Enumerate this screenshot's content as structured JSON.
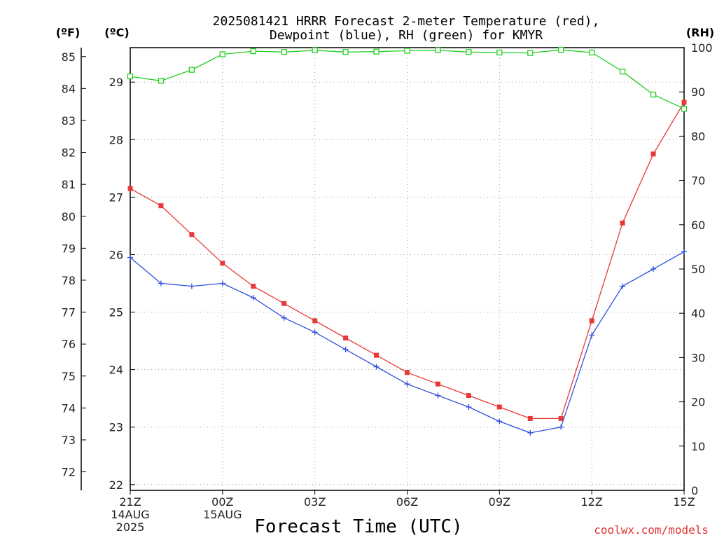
{
  "chart_data": {
    "type": "line",
    "title_line1": "2025081421 HRRR Forecast 2-meter Temperature (red),",
    "title_line2": "Dewpoint (blue), RH (green) for KMYR",
    "xlabel": "Forecast Time (UTC)",
    "unit_f": "(ºF)",
    "unit_c": "(ºC)",
    "unit_rh": "(RH)",
    "credit": "coolwx.com/models",
    "x_hours": [
      0,
      1,
      2,
      3,
      4,
      5,
      6,
      7,
      8,
      9,
      10,
      11,
      12,
      13,
      14,
      15,
      16,
      17,
      18
    ],
    "x_ticks": [
      {
        "hour": 0,
        "lines": [
          "21Z",
          "14AUG",
          "2025"
        ]
      },
      {
        "hour": 3,
        "lines": [
          "00Z",
          "15AUG"
        ]
      },
      {
        "hour": 6,
        "lines": [
          "03Z"
        ]
      },
      {
        "hour": 9,
        "lines": [
          "06Z"
        ]
      },
      {
        "hour": 12,
        "lines": [
          "09Z"
        ]
      },
      {
        "hour": 15,
        "lines": [
          "12Z"
        ]
      },
      {
        "hour": 18,
        "lines": [
          "15Z"
        ]
      }
    ],
    "c_range": [
      21.9,
      29.6
    ],
    "c_ticks": [
      "22",
      "23",
      "24",
      "25",
      "26",
      "27",
      "28",
      "29"
    ],
    "f_ticks": [
      "72",
      "73",
      "74",
      "75",
      "76",
      "77",
      "78",
      "79",
      "80",
      "81",
      "82",
      "83",
      "84",
      "85"
    ],
    "rh_range": [
      0,
      100
    ],
    "rh_ticks": [
      "0",
      "10",
      "20",
      "30",
      "40",
      "50",
      "60",
      "70",
      "80",
      "90",
      "100"
    ],
    "grid": true,
    "series": [
      {
        "color": "#e83838",
        "marker": "filled-square",
        "axis": "c",
        "values": [
          27.15,
          26.85,
          26.35,
          25.85,
          25.45,
          25.15,
          24.85,
          24.55,
          24.25,
          23.95,
          23.75,
          23.55,
          23.35,
          23.15,
          23.15,
          24.85,
          26.55,
          27.75,
          28.65
        ]
      },
      {
        "color": "#3050e0",
        "marker": "plus",
        "axis": "c",
        "values": [
          25.95,
          25.5,
          25.45,
          25.5,
          25.25,
          24.9,
          24.65,
          24.35,
          24.05,
          23.75,
          23.55,
          23.35,
          23.1,
          22.9,
          23.0,
          24.6,
          25.45,
          25.75,
          26.05
        ]
      },
      {
        "color": "#20d020",
        "marker": "open-square",
        "axis": "rh",
        "values": [
          93.5,
          92.5,
          95.0,
          98.5,
          99.2,
          99.0,
          99.4,
          99.0,
          99.1,
          99.3,
          99.4,
          99.0,
          98.9,
          98.8,
          99.5,
          98.9,
          94.6,
          89.4,
          86.2
        ]
      }
    ]
  }
}
